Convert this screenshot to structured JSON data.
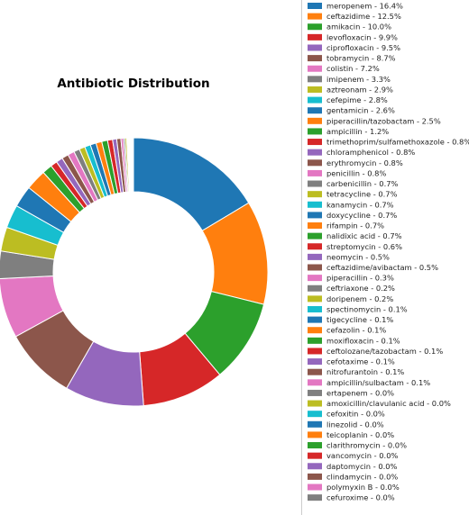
{
  "chart_data": {
    "type": "pie",
    "donut": true,
    "title": "Antibiotic Distribution",
    "legend_position": "right",
    "slices": [
      {
        "label": "meropenem - 16.4%",
        "value": 16.4,
        "color": "#1f77b4"
      },
      {
        "label": "ceftazidime - 12.5%",
        "value": 12.5,
        "color": "#ff7f0e"
      },
      {
        "label": "amikacin - 10.0%",
        "value": 10.0,
        "color": "#2ca02c"
      },
      {
        "label": "levofloxacin - 9.9%",
        "value": 9.9,
        "color": "#d62728"
      },
      {
        "label": "ciprofloxacin - 9.5%",
        "value": 9.5,
        "color": "#9467bd"
      },
      {
        "label": "tobramycin - 8.7%",
        "value": 8.7,
        "color": "#8c564b"
      },
      {
        "label": "colistin - 7.2%",
        "value": 7.2,
        "color": "#e377c2"
      },
      {
        "label": "imipenem - 3.3%",
        "value": 3.3,
        "color": "#7f7f7f"
      },
      {
        "label": "aztreonam - 2.9%",
        "value": 2.9,
        "color": "#bcbd22"
      },
      {
        "label": "cefepime - 2.8%",
        "value": 2.8,
        "color": "#17becf"
      },
      {
        "label": "gentamicin - 2.6%",
        "value": 2.6,
        "color": "#1f77b4"
      },
      {
        "label": "piperacillin/tazobactam - 2.5%",
        "value": 2.5,
        "color": "#ff7f0e"
      },
      {
        "label": "ampicillin - 1.2%",
        "value": 1.2,
        "color": "#2ca02c"
      },
      {
        "label": "trimethoprim/sulfamethoxazole - 0.8%",
        "value": 0.8,
        "color": "#d62728"
      },
      {
        "label": "chloramphenicol - 0.8%",
        "value": 0.8,
        "color": "#9467bd"
      },
      {
        "label": "erythromycin - 0.8%",
        "value": 0.8,
        "color": "#8c564b"
      },
      {
        "label": "penicillin - 0.8%",
        "value": 0.8,
        "color": "#e377c2"
      },
      {
        "label": "carbenicillin - 0.7%",
        "value": 0.7,
        "color": "#7f7f7f"
      },
      {
        "label": "tetracycline - 0.7%",
        "value": 0.7,
        "color": "#bcbd22"
      },
      {
        "label": "kanamycin - 0.7%",
        "value": 0.7,
        "color": "#17becf"
      },
      {
        "label": "doxycycline - 0.7%",
        "value": 0.7,
        "color": "#1f77b4"
      },
      {
        "label": "rifampin - 0.7%",
        "value": 0.7,
        "color": "#ff7f0e"
      },
      {
        "label": "nalidixic acid - 0.7%",
        "value": 0.7,
        "color": "#2ca02c"
      },
      {
        "label": "streptomycin - 0.6%",
        "value": 0.6,
        "color": "#d62728"
      },
      {
        "label": "neomycin - 0.5%",
        "value": 0.5,
        "color": "#9467bd"
      },
      {
        "label": "ceftazidime/avibactam - 0.5%",
        "value": 0.5,
        "color": "#8c564b"
      },
      {
        "label": "piperacillin - 0.3%",
        "value": 0.3,
        "color": "#e377c2"
      },
      {
        "label": "ceftriaxone - 0.2%",
        "value": 0.2,
        "color": "#7f7f7f"
      },
      {
        "label": "doripenem - 0.2%",
        "value": 0.2,
        "color": "#bcbd22"
      },
      {
        "label": "spectinomycin - 0.1%",
        "value": 0.1,
        "color": "#17becf"
      },
      {
        "label": "tigecycline - 0.1%",
        "value": 0.1,
        "color": "#1f77b4"
      },
      {
        "label": "cefazolin - 0.1%",
        "value": 0.1,
        "color": "#ff7f0e"
      },
      {
        "label": "moxifloxacin - 0.1%",
        "value": 0.1,
        "color": "#2ca02c"
      },
      {
        "label": "ceftolozane/tazobactam - 0.1%",
        "value": 0.1,
        "color": "#d62728"
      },
      {
        "label": "cefotaxime - 0.1%",
        "value": 0.1,
        "color": "#9467bd"
      },
      {
        "label": "nitrofurantoin - 0.1%",
        "value": 0.1,
        "color": "#8c564b"
      },
      {
        "label": "ampicillin/sulbactam - 0.1%",
        "value": 0.1,
        "color": "#e377c2"
      },
      {
        "label": "ertapenem - 0.0%",
        "value": 0.0,
        "color": "#7f7f7f"
      },
      {
        "label": "amoxicillin/clavulanic acid - 0.0%",
        "value": 0.0,
        "color": "#bcbd22"
      },
      {
        "label": "cefoxitin - 0.0%",
        "value": 0.0,
        "color": "#17becf"
      },
      {
        "label": "linezolid - 0.0%",
        "value": 0.0,
        "color": "#1f77b4"
      },
      {
        "label": "teicoplanin - 0.0%",
        "value": 0.0,
        "color": "#ff7f0e"
      },
      {
        "label": "clarithromycin - 0.0%",
        "value": 0.0,
        "color": "#2ca02c"
      },
      {
        "label": "vancomycin - 0.0%",
        "value": 0.0,
        "color": "#d62728"
      },
      {
        "label": "daptomycin - 0.0%",
        "value": 0.0,
        "color": "#9467bd"
      },
      {
        "label": "clindamycin - 0.0%",
        "value": 0.0,
        "color": "#8c564b"
      },
      {
        "label": "polymyxin B - 0.0%",
        "value": 0.0,
        "color": "#e377c2"
      },
      {
        "label": "cefuroxime - 0.0%",
        "value": 0.0,
        "color": "#7f7f7f"
      }
    ]
  }
}
